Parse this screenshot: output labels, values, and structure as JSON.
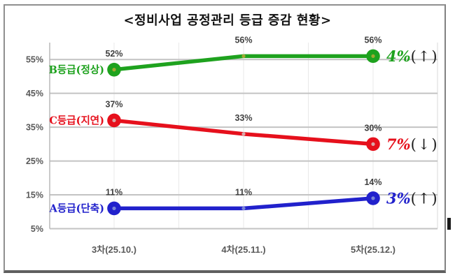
{
  "chart_data": {
    "type": "line",
    "title": "<정비사업 공정관리 등급 증감 현황>",
    "categories": [
      "3차(25.10.)",
      "4차(25.11.)",
      "5차(25.12.)"
    ],
    "series": [
      {
        "name": "B등급(정상)",
        "color": "#1ea21e",
        "marker_center": "#a2a832",
        "values": [
          52,
          56,
          56
        ],
        "point_labels": [
          "52%",
          "56%",
          "56%"
        ],
        "change": "4%",
        "change_arrow": "(↑)"
      },
      {
        "name": "C등급(지연)",
        "color": "#e6101c",
        "marker_center": "#d8a8a8",
        "values": [
          37,
          33,
          30
        ],
        "point_labels": [
          "37%",
          "33%",
          "30%"
        ],
        "change": "7%",
        "change_arrow": "(↓)"
      },
      {
        "name": "A등급(단축)",
        "color": "#2121cc",
        "marker_center": "#7b86d6",
        "values": [
          11,
          11,
          14
        ],
        "point_labels": [
          "11%",
          "11%",
          "14%"
        ],
        "change": "3%",
        "change_arrow": "(↑)"
      }
    ],
    "yticks": [
      {
        "value": 55,
        "label": "55%"
      },
      {
        "value": 45,
        "label": "45%"
      },
      {
        "value": 35,
        "label": "35%"
      },
      {
        "value": 25,
        "label": "25%"
      },
      {
        "value": 15,
        "label": "15%"
      },
      {
        "value": 5,
        "label": "5%"
      }
    ],
    "ylim": [
      5,
      60
    ],
    "grid": true,
    "legend_position": "inline-left-of-first-point",
    "colors": {
      "grid": "#c3c3c3",
      "minor_grid": "#e9e9e9",
      "plot_border": "#e0e0e0",
      "axis": "#b8b8b8",
      "tick_label": "#595959",
      "data_label": "#404040",
      "arrow": "#1a1a1a",
      "frame_border": "#8f8f8f",
      "title": "#111111"
    }
  }
}
